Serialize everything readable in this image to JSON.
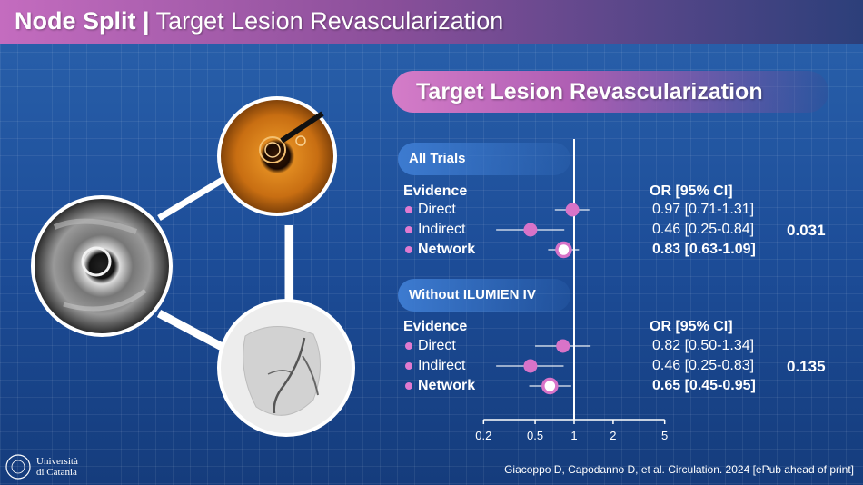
{
  "header": {
    "title_bold": "Node Split",
    "separator": "|",
    "title_rest": "Target Lesion Revascularization"
  },
  "banner": {
    "title": "Target Lesion Revascularization"
  },
  "sections": [
    {
      "label": "All Trials",
      "p_value": "0.031"
    },
    {
      "label": "Without ILUMIEN IV",
      "p_value": "0.135"
    }
  ],
  "table": {
    "col_evidence": "Evidence",
    "col_or": "OR [95% CI]"
  },
  "chart_data": {
    "type": "forest",
    "scale": "log",
    "x_ticks": [
      0.2,
      0.5,
      1,
      2,
      5
    ],
    "x_tick_labels": [
      "0.2",
      "0.5",
      "1",
      "2",
      "5"
    ],
    "reference_line": 1,
    "groups": [
      {
        "name": "All Trials",
        "rows": [
          {
            "label": "Direct",
            "or": 0.97,
            "lo": 0.71,
            "hi": 1.31,
            "text": "0.97 [0.71-1.31]"
          },
          {
            "label": "Indirect",
            "or": 0.46,
            "lo": 0.25,
            "hi": 0.84,
            "text": "0.46 [0.25-0.84]"
          },
          {
            "label": "Network",
            "or": 0.83,
            "lo": 0.63,
            "hi": 1.09,
            "text": "0.83 [0.63-1.09]"
          }
        ]
      },
      {
        "name": "Without ILUMIEN IV",
        "rows": [
          {
            "label": "Direct",
            "or": 0.82,
            "lo": 0.5,
            "hi": 1.34,
            "text": "0.82 [0.50-1.34]"
          },
          {
            "label": "Indirect",
            "or": 0.46,
            "lo": 0.25,
            "hi": 0.83,
            "text": "0.46 [0.25-0.83]"
          },
          {
            "label": "Network",
            "or": 0.65,
            "lo": 0.45,
            "hi": 0.95,
            "text": "0.65 [0.45-0.95]"
          }
        ]
      }
    ]
  },
  "colors": {
    "marker": "#d873c8",
    "network_ring": "#d873c8",
    "line": "#ffffff"
  },
  "logo": {
    "line1": "Università",
    "line2": "di Catania"
  },
  "citation": "Giacoppo D, Capodanno D, et al. Circulation. 2024 [ePub ahead of print]"
}
